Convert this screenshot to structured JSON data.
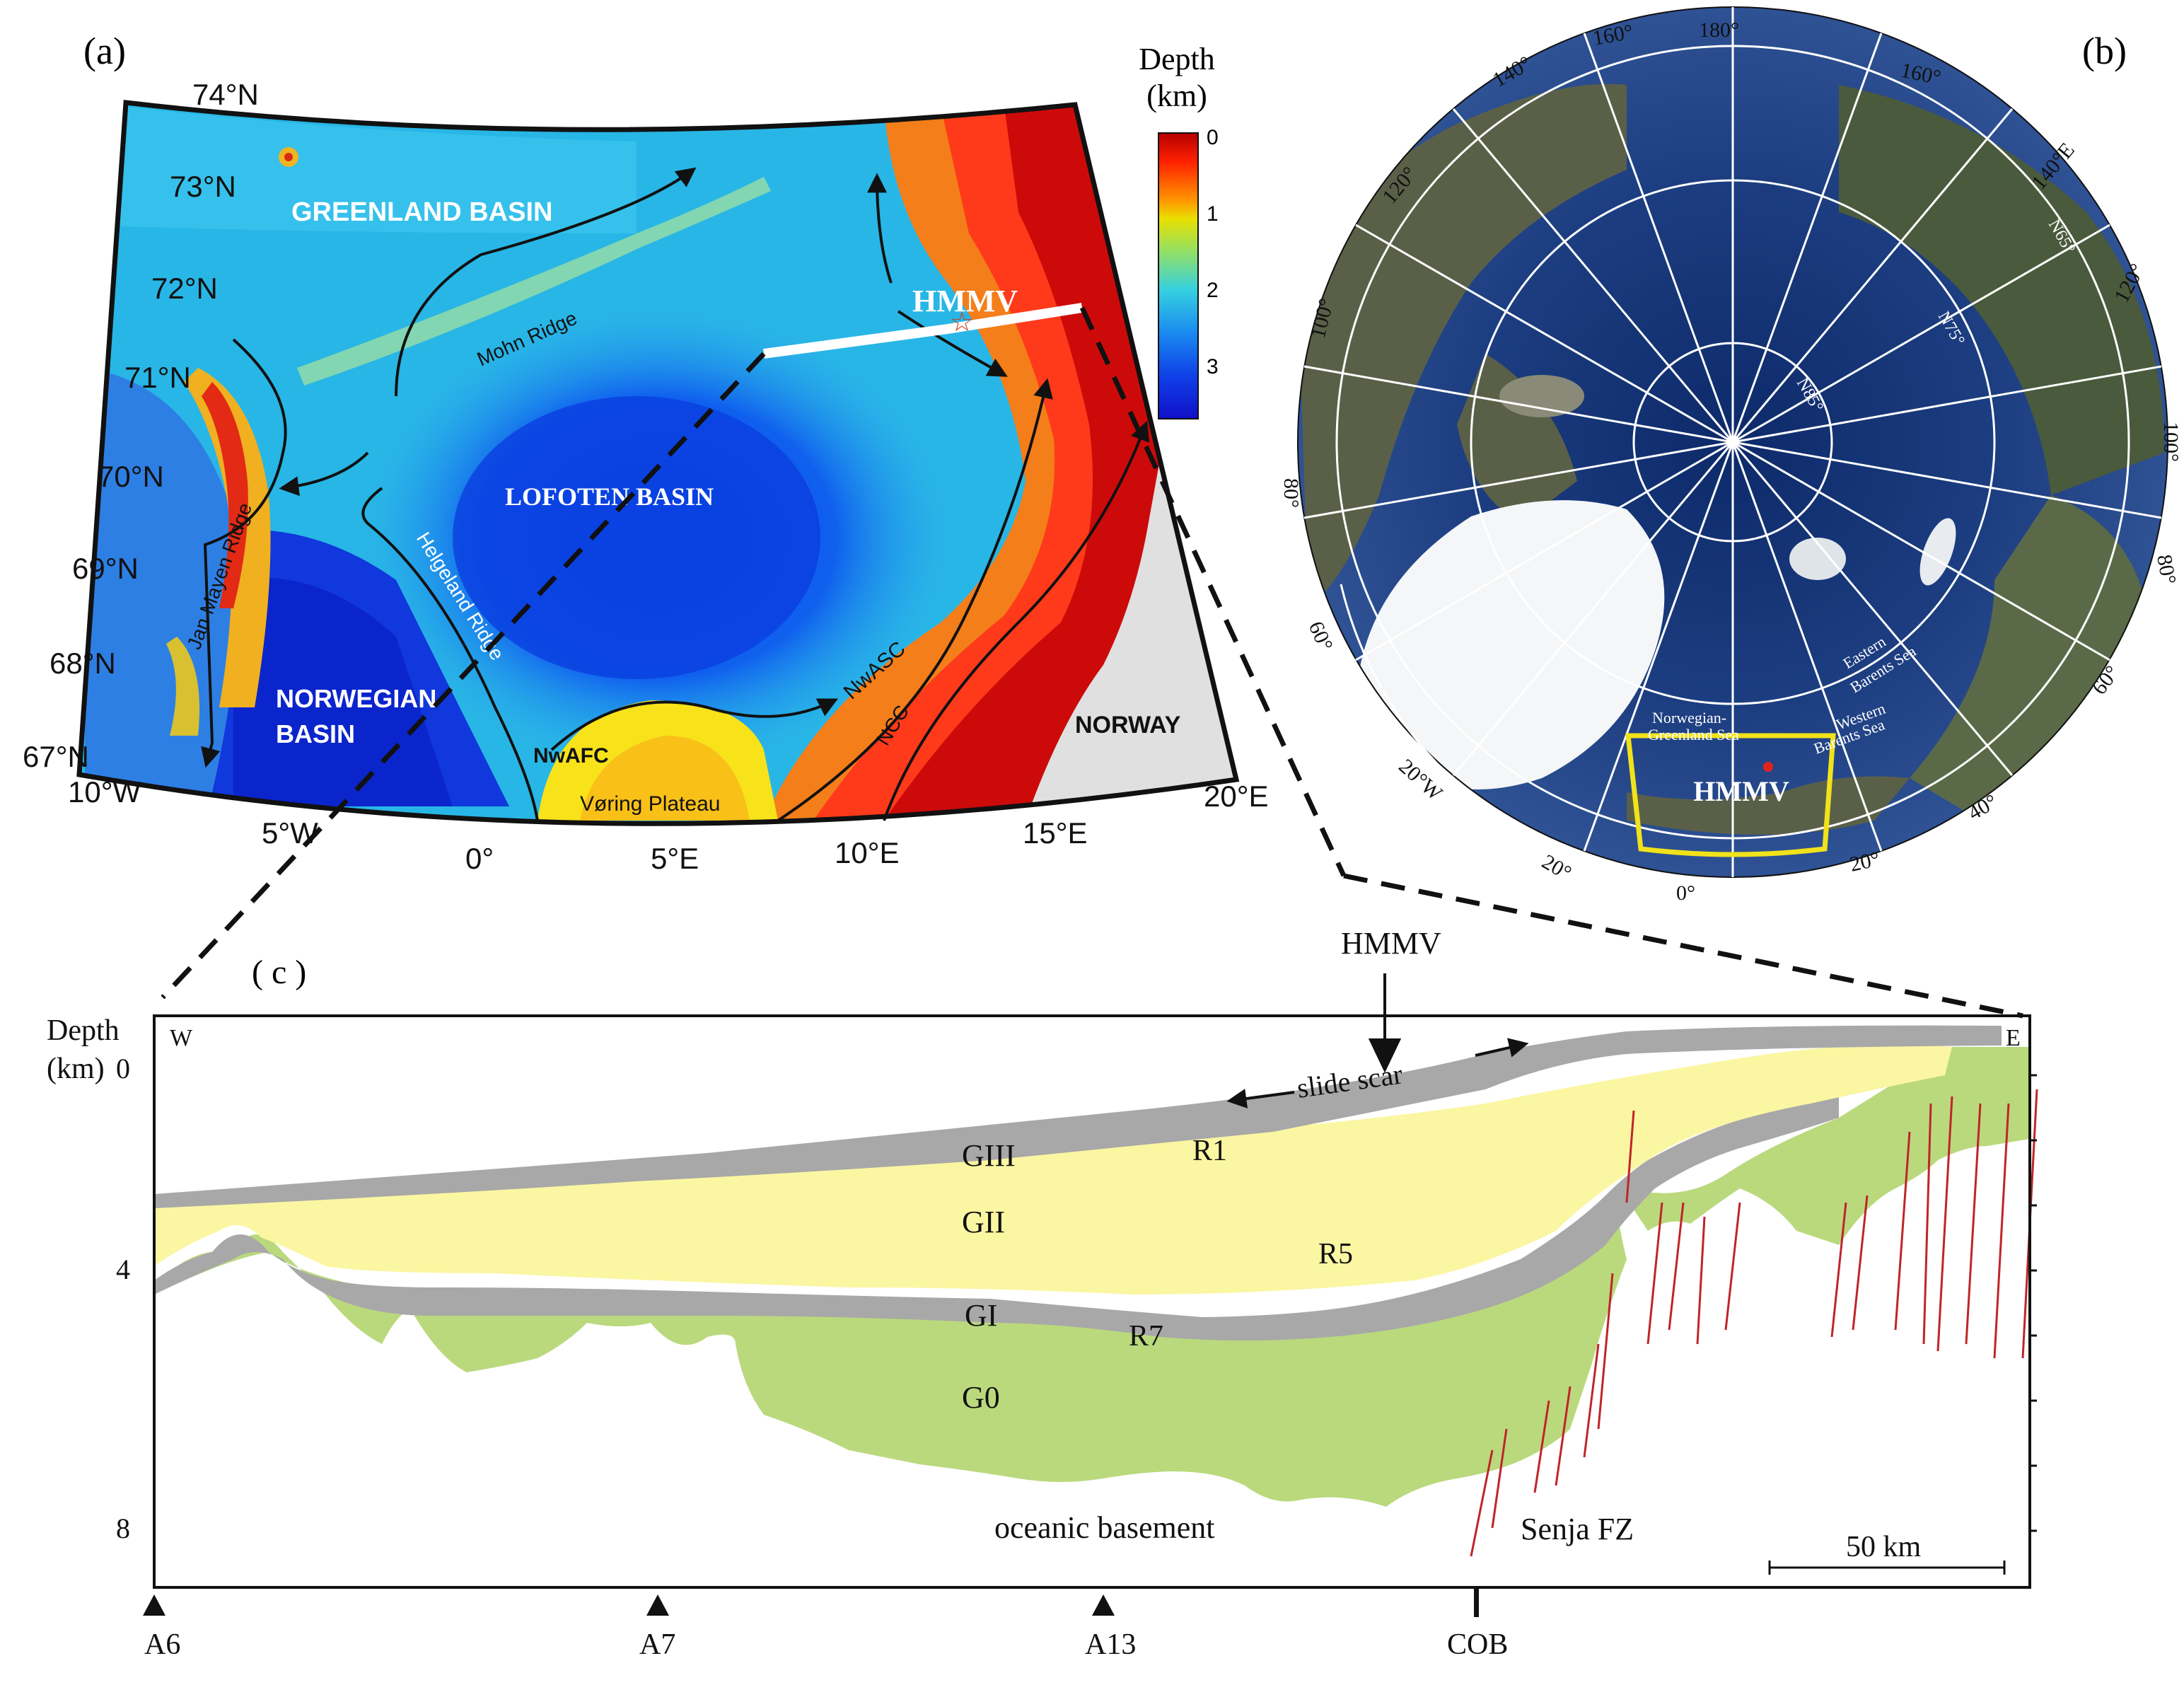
{
  "panel_a": {
    "label": "(a)",
    "lat_labels": [
      "74°N",
      "73°N",
      "72°N",
      "71°N",
      "70°N",
      "69°N",
      "68°N",
      "67°N"
    ],
    "lon_labels": [
      "10°W",
      "5°W",
      "0°",
      "5°E",
      "10°E",
      "15°E",
      "20°E"
    ],
    "basins": {
      "greenland": "GREENLAND BASIN",
      "lofoten": "LOFOTEN BASIN",
      "norwegian_1": "NORWEGIAN",
      "norwegian_2": "BASIN",
      "norway": "NORWAY"
    },
    "features": {
      "mohn_ridge": "Mohn Ridge",
      "jan_mayen_ridge": "Jan Mayen Ridge",
      "helgeland_ridge": "Helgeland Ridge",
      "voring_plateau": "Vøring Plateau",
      "nwafc": "NwAFC",
      "nwasc": "NwASC",
      "ncc": "NCC",
      "hmmv": "HMMV"
    },
    "colorbar": {
      "title_1": "Depth",
      "title_2": "(km)",
      "ticks": [
        "0",
        "1",
        "2",
        "3"
      ],
      "colors": [
        "#b40000",
        "#ff2000",
        "#ff9a00",
        "#e8e000",
        "#8fe06a",
        "#35d0e0",
        "#1a8af0",
        "#1040e8",
        "#1010c8"
      ]
    }
  },
  "panel_b": {
    "label": "(b)",
    "lon_labels": [
      "180°",
      "160°",
      "160°",
      "140°",
      "140°E",
      "120°",
      "120°",
      "100°",
      "100°",
      "80°",
      "80°",
      "60°",
      "60°",
      "40°",
      "40°",
      "20°",
      "20°",
      "0°",
      "20°W"
    ],
    "lat_labels": [
      "N65°",
      "N75°",
      "N85°"
    ],
    "seas": {
      "norwegian_greenland_1": "Norwegian-",
      "norwegian_greenland_2": "Greenland Sea",
      "western_barents_1": "Western",
      "western_barents_2": "Barents Sea",
      "eastern_barents_1": "Eastern",
      "eastern_barents_2": "Barents Sea"
    },
    "hmmv": "HMMV",
    "box_color": "#f2e21a"
  },
  "panel_c": {
    "label": "( c )",
    "y_axis_title_1": "Depth",
    "y_axis_title_2": "(km)",
    "y_ticks": [
      "0",
      "4",
      "8"
    ],
    "west": "W",
    "east": "E",
    "hmmv": "HMMV",
    "slide_scar": "slide scar",
    "units": [
      "GIII",
      "GII",
      "GI",
      "G0"
    ],
    "reflectors": [
      "R1",
      "R5",
      "R7"
    ],
    "basement": "oceanic basement",
    "senja": "Senja FZ",
    "scale": "50 km",
    "magnetic_anomalies": [
      "A6",
      "A7",
      "A13",
      "COB"
    ],
    "colors": {
      "gray": "#a8a8a8",
      "yellow": "#fbf6a2",
      "green": "#bad97d",
      "fault": "#c0242a"
    }
  }
}
